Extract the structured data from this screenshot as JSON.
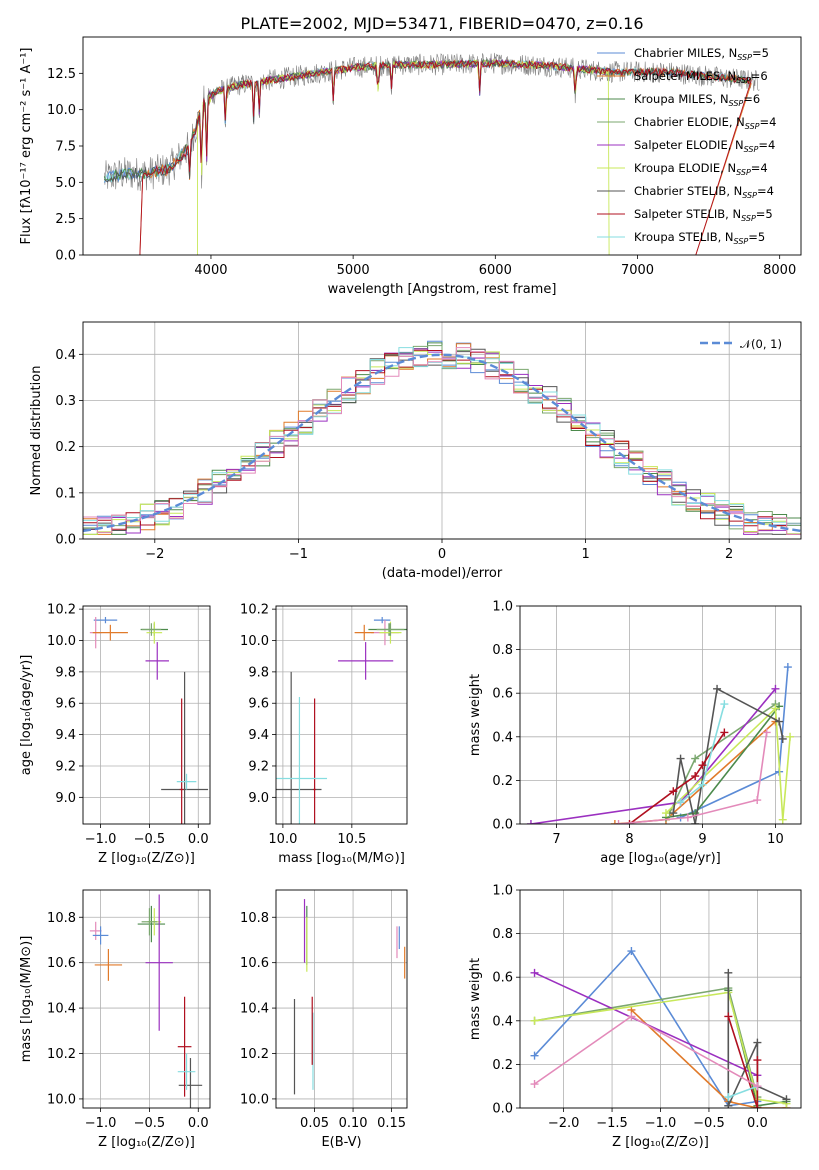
{
  "colors": {
    "chabrier_miles": "#5b8bd6",
    "salpeter_miles": "#e07a2a",
    "kroupa_miles": "#4c8a4c",
    "chabrier_elodie": "#7ba76f",
    "salpeter_elodie": "#9b30c0",
    "kroupa_elodie": "#c8e85a",
    "chabrier_stelib": "#555555",
    "salpeter_stelib": "#b01020",
    "kroupa_stelib": "#86dde0",
    "pink": "#e38aba",
    "gauss": "#5b8bd6",
    "data": "#808080"
  },
  "chart_data": [
    {
      "id": "spectrum",
      "type": "line",
      "title": "PLATE=2002, MJD=53471, FIBERID=0470, z=0.16",
      "xlabel": "wavelength [Angstrom, rest frame]",
      "ylabel": "Flux [fλ10⁻¹⁷ erg cm⁻² s⁻¹ A⁻¹]",
      "xlim": [
        3100,
        8150
      ],
      "ylim": [
        0,
        15
      ],
      "xticks": [
        "4000",
        "5000",
        "6000",
        "7000",
        "8000"
      ],
      "xtick_values": [
        4000,
        5000,
        6000,
        7000,
        8000
      ],
      "yticks": [
        "0.0",
        "2.5",
        "5.0",
        "7.5",
        "10.0",
        "12.5"
      ],
      "ytick_values": [
        0,
        2.5,
        5,
        7.5,
        10,
        12.5
      ],
      "legend_position": "right",
      "legend": [
        {
          "label": "Chabrier MILES, N",
          "sub": "SSP",
          "tail": "=5",
          "color": "chabrier_miles"
        },
        {
          "label": "Salpeter MILES, N",
          "sub": "SSP",
          "tail": "=6",
          "color": "salpeter_miles"
        },
        {
          "label": "Kroupa MILES, N",
          "sub": "SSP",
          "tail": "=6",
          "color": "kroupa_miles"
        },
        {
          "label": "Chabrier ELODIE, N",
          "sub": "SSP",
          "tail": "=4",
          "color": "chabrier_elodie"
        },
        {
          "label": "Salpeter ELODIE, N",
          "sub": "SSP",
          "tail": "=4",
          "color": "salpeter_elodie"
        },
        {
          "label": "Kroupa ELODIE, N",
          "sub": "SSP",
          "tail": "=4",
          "color": "kroupa_elodie"
        },
        {
          "label": "Chabrier STELIB, N",
          "sub": "SSP",
          "tail": "=4",
          "color": "chabrier_stelib"
        },
        {
          "label": "Salpeter STELIB, N",
          "sub": "SSP",
          "tail": "=5",
          "color": "salpeter_stelib"
        },
        {
          "label": "Kroupa STELIB, N",
          "sub": "SSP",
          "tail": "=5",
          "color": "kroupa_stelib"
        }
      ],
      "continuum": {
        "x": [
          3250,
          3400,
          3550,
          3700,
          3850,
          3950,
          4050,
          4200,
          4400,
          4600,
          4800,
          5000,
          5300,
          5600,
          6000,
          6400,
          6800,
          7200,
          7600,
          7800
        ],
        "y": [
          5.3,
          5.6,
          5.6,
          5.9,
          7.5,
          10.5,
          11.3,
          11.7,
          12.0,
          12.3,
          12.6,
          12.9,
          13.1,
          13.1,
          13.2,
          13.0,
          12.6,
          12.6,
          12.2,
          12.0
        ]
      }
    },
    {
      "id": "residuals",
      "type": "histogram",
      "xlabel": "(data-model)/error",
      "ylabel": "Normed distribution",
      "xlim": [
        -2.5,
        2.5
      ],
      "ylim": [
        0,
        0.47
      ],
      "xticks": [
        "−2",
        "−1",
        "0",
        "1",
        "2"
      ],
      "xtick_values": [
        -2,
        -1,
        0,
        1,
        2
      ],
      "yticks": [
        "0.0",
        "0.1",
        "0.2",
        "0.3",
        "0.4"
      ],
      "ytick_values": [
        0,
        0.1,
        0.2,
        0.3,
        0.4
      ],
      "legend": [
        {
          "label": "𝒩(0, 1)",
          "color": "gauss"
        }
      ],
      "bin_width": 0.1,
      "series_colors": [
        "chabrier_miles",
        "salpeter_miles",
        "kroupa_miles",
        "chabrier_elodie",
        "salpeter_elodie",
        "kroupa_elodie",
        "chabrier_stelib",
        "salpeter_stelib",
        "kroupa_stelib",
        "pink"
      ]
    },
    {
      "id": "age_vs_z",
      "type": "errorbar",
      "xlabel": "Z [log₁₀(Z/Z⊙)]",
      "ylabel": "age  [log₁₀(age/yr)]",
      "xlim": [
        -1.18,
        0.12
      ],
      "ylim": [
        8.83,
        10.22
      ],
      "xticks": [
        "−1.0",
        "−0.5",
        "0.0"
      ],
      "xtick_values": [
        -1,
        -0.5,
        0
      ],
      "yticks": [
        "9.0",
        "9.2",
        "9.4",
        "9.6",
        "9.8",
        "10.0",
        "10.2"
      ],
      "ytick_values": [
        9,
        9.2,
        9.4,
        9.6,
        9.8,
        10,
        10.2
      ],
      "points": [
        {
          "c": "chabrier_miles",
          "x": -0.95,
          "y": 10.13,
          "xe": 0.12,
          "ye": 0.02
        },
        {
          "c": "pink",
          "x": -1.05,
          "y": 10.05,
          "xe": 0.06,
          "ye": 0.1
        },
        {
          "c": "salpeter_miles",
          "x": -0.9,
          "y": 10.05,
          "xe": 0.18,
          "ye": 0.05
        },
        {
          "c": "kroupa_miles",
          "x": -0.45,
          "y": 10.07,
          "xe": 0.14,
          "ye": 0.04
        },
        {
          "c": "kroupa_elodie",
          "x": -0.45,
          "y": 10.05,
          "xe": 0.08,
          "ye": 0.07
        },
        {
          "c": "chabrier_elodie",
          "x": -0.48,
          "y": 10.07,
          "xe": 0.1,
          "ye": 0.04
        },
        {
          "c": "salpeter_elodie",
          "x": -0.42,
          "y": 9.87,
          "xe": 0.12,
          "ye": 0.12
        },
        {
          "c": "chabrier_stelib",
          "x": -0.14,
          "y": 9.05,
          "xe": 0.24,
          "ye": 0.75
        },
        {
          "c": "salpeter_stelib",
          "x": -0.17,
          "y": 9.05,
          "xe": 0.02,
          "ye": 0.58
        },
        {
          "c": "kroupa_stelib",
          "x": -0.12,
          "y": 9.1,
          "xe": 0.1,
          "ye": 0.05
        }
      ]
    },
    {
      "id": "age_vs_mass",
      "type": "errorbar",
      "xlabel": "mass [log₁₀(M/M⊙)]",
      "ylabel": "",
      "xlim": [
        9.95,
        10.9
      ],
      "ylim": [
        8.83,
        10.22
      ],
      "xticks": [
        "10.0",
        "10.5"
      ],
      "xtick_values": [
        10,
        10.5
      ],
      "yticks": [
        "9.0",
        "9.2",
        "9.4",
        "9.6",
        "9.8",
        "10.0",
        "10.2"
      ],
      "ytick_values": [
        9,
        9.2,
        9.4,
        9.6,
        9.8,
        10,
        10.2
      ],
      "points": [
        {
          "c": "chabrier_miles",
          "x": 10.72,
          "y": 10.13,
          "xe": 0.06,
          "ye": 0.02
        },
        {
          "c": "pink",
          "x": 10.74,
          "y": 10.05,
          "xe": 0.1,
          "ye": 0.08
        },
        {
          "c": "salpeter_miles",
          "x": 10.59,
          "y": 10.05,
          "xe": 0.07,
          "ye": 0.05
        },
        {
          "c": "kroupa_miles",
          "x": 10.77,
          "y": 10.07,
          "xe": 0.15,
          "ye": 0.04
        },
        {
          "c": "kroupa_elodie",
          "x": 10.78,
          "y": 10.05,
          "xe": 0.08,
          "ye": 0.07
        },
        {
          "c": "chabrier_elodie",
          "x": 10.78,
          "y": 10.07,
          "xe": 0.1,
          "ye": 0.04
        },
        {
          "c": "salpeter_elodie",
          "x": 10.6,
          "y": 9.87,
          "xe": 0.2,
          "ye": 0.12
        },
        {
          "c": "chabrier_stelib",
          "x": 10.06,
          "y": 9.05,
          "xe": 0.22,
          "ye": 0.75
        },
        {
          "c": "salpeter_stelib",
          "x": 10.23,
          "y": 9.05,
          "xe": 0.01,
          "ye": 0.58
        },
        {
          "c": "kroupa_stelib",
          "x": 10.12,
          "y": 9.12,
          "xe": 0.2,
          "ye": 0.52
        }
      ]
    },
    {
      "id": "mass_vs_z",
      "type": "errorbar",
      "xlabel": "Z [log₁₀(Z/Z⊙)]",
      "ylabel": "mass [log₁₀(M/M⊙)]",
      "xlim": [
        -1.18,
        0.12
      ],
      "ylim": [
        9.96,
        10.92
      ],
      "xticks": [
        "−1.0",
        "−0.5",
        "0.0"
      ],
      "xtick_values": [
        -1,
        -0.5,
        0
      ],
      "yticks": [
        "10.0",
        "10.2",
        "10.4",
        "10.6",
        "10.8"
      ],
      "ytick_values": [
        10,
        10.2,
        10.4,
        10.6,
        10.8
      ],
      "points": [
        {
          "c": "pink",
          "x": -1.05,
          "y": 10.74,
          "xe": 0.06,
          "ye": 0.04
        },
        {
          "c": "chabrier_miles",
          "x": -1.0,
          "y": 10.72,
          "xe": 0.08,
          "ye": 0.04
        },
        {
          "c": "salpeter_miles",
          "x": -0.92,
          "y": 10.59,
          "xe": 0.14,
          "ye": 0.07
        },
        {
          "c": "kroupa_miles",
          "x": -0.48,
          "y": 10.77,
          "xe": 0.14,
          "ye": 0.08
        },
        {
          "c": "kroupa_elodie",
          "x": -0.45,
          "y": 10.78,
          "xe": 0.07,
          "ye": 0.06
        },
        {
          "c": "chabrier_elodie",
          "x": -0.5,
          "y": 10.78,
          "xe": 0.08,
          "ye": 0.06
        },
        {
          "c": "salpeter_elodie",
          "x": -0.4,
          "y": 10.6,
          "xe": 0.14,
          "ye": 0.3
        },
        {
          "c": "chabrier_stelib",
          "x": -0.08,
          "y": 10.06,
          "xe": 0.12,
          "ye": 0.12
        },
        {
          "c": "salpeter_stelib",
          "x": -0.14,
          "y": 10.23,
          "xe": 0.07,
          "ye": 0.22
        },
        {
          "c": "kroupa_stelib",
          "x": -0.12,
          "y": 10.12,
          "xe": 0.09,
          "ye": 0.08
        }
      ]
    },
    {
      "id": "mass_vs_ebv",
      "type": "errorbar",
      "xlabel": "E(B-V)",
      "ylabel": "",
      "xlim": [
        0.0,
        0.17
      ],
      "ylim": [
        9.96,
        10.92
      ],
      "xticks": [
        "0.05",
        "0.10",
        "0.15"
      ],
      "xtick_values": [
        0.05,
        0.1,
        0.15
      ],
      "yticks": [
        "10.0",
        "10.2",
        "10.4",
        "10.6",
        "10.8"
      ],
      "ytick_values": [
        10,
        10.2,
        10.4,
        10.6,
        10.8
      ],
      "points": [
        {
          "c": "salpeter_elodie",
          "x": 0.037,
          "y": 10.74,
          "xe": 0,
          "ye": 0.14
        },
        {
          "c": "kroupa_miles",
          "x": 0.04,
          "y": 10.72,
          "xe": 0,
          "ye": 0.13
        },
        {
          "c": "kroupa_elodie",
          "x": 0.04,
          "y": 10.68,
          "xe": 0,
          "ye": 0.12
        },
        {
          "c": "chabrier_stelib",
          "x": 0.024,
          "y": 10.23,
          "xe": 0,
          "ye": 0.21
        },
        {
          "c": "kroupa_stelib",
          "x": 0.048,
          "y": 10.21,
          "xe": 0,
          "ye": 0.17
        },
        {
          "c": "salpeter_stelib",
          "x": 0.047,
          "y": 10.3,
          "xe": 0,
          "ye": 0.15
        },
        {
          "c": "pink",
          "x": 0.157,
          "y": 10.69,
          "xe": 0,
          "ye": 0.07
        },
        {
          "c": "chabrier_miles",
          "x": 0.16,
          "y": 10.71,
          "xe": 0,
          "ye": 0.05
        },
        {
          "c": "salpeter_miles",
          "x": 0.167,
          "y": 10.6,
          "xe": 0,
          "ye": 0.07
        }
      ]
    },
    {
      "id": "weight_vs_age",
      "type": "line",
      "xlabel": "age  [log₁₀(age/yr)]",
      "ylabel": "mass weight",
      "xlim": [
        6.5,
        10.35
      ],
      "ylim": [
        0,
        1.0
      ],
      "xticks": [
        "7",
        "8",
        "9",
        "10"
      ],
      "xtick_values": [
        7,
        8,
        9,
        10
      ],
      "yticks": [
        "0.0",
        "0.2",
        "0.4",
        "0.6",
        "0.8",
        "1.0"
      ],
      "ytick_values": [
        0,
        0.2,
        0.4,
        0.6,
        0.8,
        1.0
      ],
      "series": [
        {
          "c": "chabrier_miles",
          "x": [
            8.7,
            10.05,
            10.17
          ],
          "y": [
            0.03,
            0.24,
            0.72
          ]
        },
        {
          "c": "salpeter_miles",
          "x": [
            7.8,
            8.5,
            10.0
          ],
          "y": [
            0.0,
            0.02,
            0.47
          ]
        },
        {
          "c": "kroupa_miles",
          "x": [
            8.5,
            8.9,
            10.05
          ],
          "y": [
            0.03,
            0.05,
            0.54
          ]
        },
        {
          "c": "chabrier_elodie",
          "x": [
            8.55,
            8.9,
            10.0
          ],
          "y": [
            0.05,
            0.3,
            0.55
          ]
        },
        {
          "c": "salpeter_elodie",
          "x": [
            6.65,
            8.7,
            10.0
          ],
          "y": [
            0.0,
            0.1,
            0.62
          ]
        },
        {
          "c": "kroupa_elodie",
          "x": [
            8.5,
            10.0,
            10.1,
            10.2
          ],
          "y": [
            0.05,
            0.53,
            0.02,
            0.4
          ]
        },
        {
          "c": "chabrier_stelib",
          "x": [
            8.6,
            8.7,
            8.9,
            9.2,
            10.05,
            10.1
          ],
          "y": [
            0.05,
            0.3,
            0.0,
            0.62,
            0.47,
            0.39
          ]
        },
        {
          "c": "salpeter_stelib",
          "x": [
            8.0,
            8.6,
            8.9,
            9.0,
            9.3
          ],
          "y": [
            0.0,
            0.15,
            0.22,
            0.27,
            0.42
          ]
        },
        {
          "c": "kroupa_stelib",
          "x": [
            8.7,
            9.0,
            9.3
          ],
          "y": [
            0.1,
            0.18,
            0.55
          ]
        },
        {
          "c": "pink",
          "x": [
            7.85,
            8.8,
            9.75,
            9.88
          ],
          "y": [
            0.0,
            0.03,
            0.11,
            0.42
          ]
        }
      ]
    },
    {
      "id": "weight_vs_z",
      "type": "line",
      "xlabel": "Z [log₁₀(Z/Z⊙)]",
      "ylabel": "mass weight",
      "xlim": [
        -2.45,
        0.45
      ],
      "ylim": [
        0,
        1.0
      ],
      "xticks": [
        "−2.0",
        "−1.5",
        "−1.0",
        "−0.5",
        "0.0"
      ],
      "xtick_values": [
        -2,
        -1.5,
        -1,
        -0.5,
        0
      ],
      "yticks": [
        "0.0",
        "0.2",
        "0.4",
        "0.6",
        "0.8",
        "1.0"
      ],
      "ytick_values": [
        0,
        0.2,
        0.4,
        0.6,
        0.8,
        1.0
      ],
      "series": [
        {
          "c": "chabrier_miles",
          "x": [
            -2.3,
            -1.3,
            -0.3,
            0.0
          ],
          "y": [
            0.24,
            0.72,
            0.01,
            0.03
          ]
        },
        {
          "c": "salpeter_miles",
          "x": [
            -1.3,
            -0.3,
            0.0,
            0.3
          ],
          "y": [
            0.45,
            0.03,
            0.0,
            0.0
          ]
        },
        {
          "c": "kroupa_miles",
          "x": [
            -0.3,
            0.0,
            0.3
          ],
          "y": [
            0.54,
            0.01,
            0.03
          ]
        },
        {
          "c": "chabrier_elodie",
          "x": [
            -2.3,
            -0.3,
            0.0
          ],
          "y": [
            0.4,
            0.55,
            0.05
          ]
        },
        {
          "c": "salpeter_elodie",
          "x": [
            -2.3,
            0.0
          ],
          "y": [
            0.62,
            0.15
          ]
        },
        {
          "c": "kroupa_elodie",
          "x": [
            -2.3,
            -0.3,
            0.0,
            0.3
          ],
          "y": [
            0.4,
            0.53,
            0.04,
            0.02
          ]
        },
        {
          "c": "chabrier_stelib",
          "x": [
            -0.3,
            -0.3,
            0.0,
            0.0,
            0.3
          ],
          "y": [
            0.62,
            0.01,
            0.3,
            0.1,
            0.04
          ]
        },
        {
          "c": "salpeter_stelib",
          "x": [
            -0.3,
            0.0,
            0.0
          ],
          "y": [
            0.42,
            0.0,
            0.22
          ]
        },
        {
          "c": "kroupa_stelib",
          "x": [
            -0.3,
            0.0
          ],
          "y": [
            0.05,
            0.1
          ]
        },
        {
          "c": "pink",
          "x": [
            -2.3,
            -1.3,
            0.0
          ],
          "y": [
            0.11,
            0.42,
            0.1
          ]
        }
      ]
    }
  ]
}
